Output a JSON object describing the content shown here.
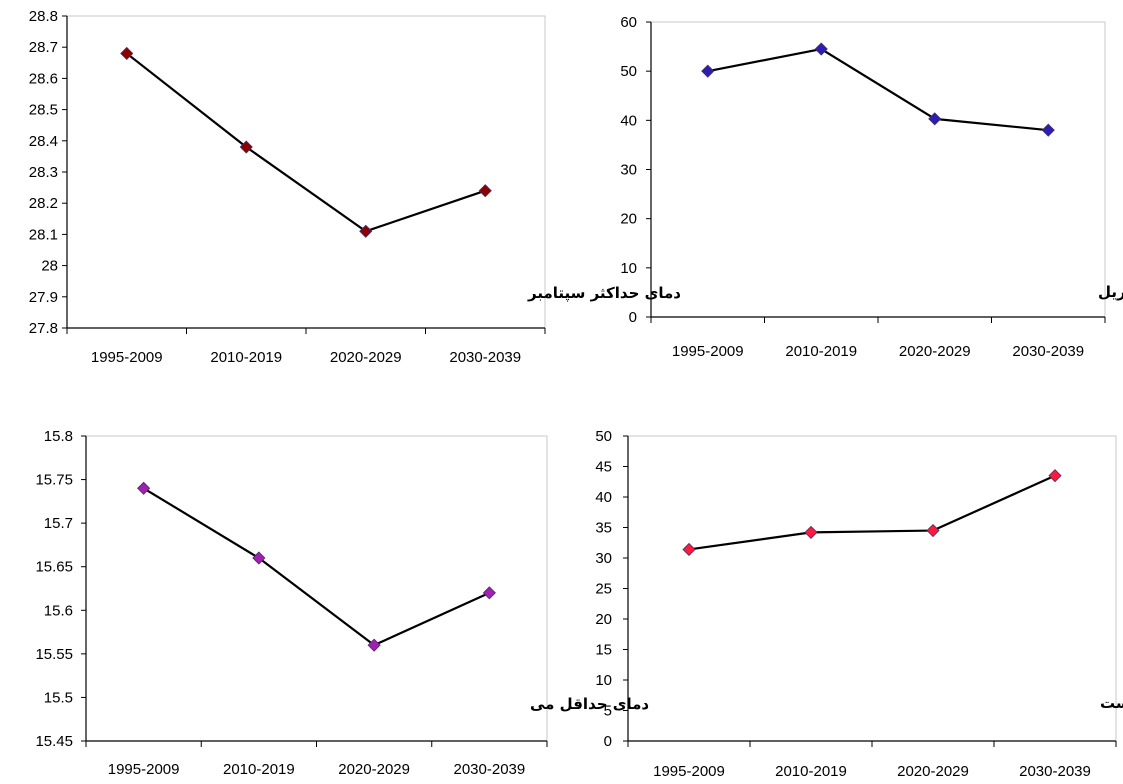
{
  "chart_data": [
    {
      "type": "line",
      "title": "دمای حداکثر سپتامبر",
      "categories": [
        "1995-2009",
        "2010-2019",
        "2020-2029",
        "2030-2039"
      ],
      "series": [
        {
          "values": [
            28.68,
            28.38,
            28.11,
            28.24
          ]
        }
      ],
      "ylim": [
        27.8,
        28.8
      ],
      "yticks": [
        "27.8",
        "27.9",
        "28",
        "28.1",
        "28.2",
        "28.3",
        "28.4",
        "28.5",
        "28.6",
        "28.7",
        "28.8"
      ],
      "marker_color": "#8b0000",
      "grid": false
    },
    {
      "type": "line",
      "title": "بارندگی آوریل",
      "categories": [
        "1995-2009",
        "2010-2019",
        "2020-2029",
        "2030-2039"
      ],
      "series": [
        {
          "values": [
            50,
            54.5,
            40.3,
            38
          ]
        }
      ],
      "ylim": [
        0,
        60
      ],
      "yticks": [
        "0",
        "10",
        "20",
        "30",
        "40",
        "50",
        "60"
      ],
      "marker_color": "#2a1fb0",
      "grid": false
    },
    {
      "type": "line",
      "title": "دمای حداقل می",
      "categories": [
        "1995-2009",
        "2010-2019",
        "2020-2029",
        "2030-2039"
      ],
      "series": [
        {
          "values": [
            15.74,
            15.66,
            15.56,
            15.62
          ]
        }
      ],
      "ylim": [
        15.45,
        15.8
      ],
      "yticks": [
        "15.45",
        "15.5",
        "15.55",
        "15.6",
        "15.65",
        "15.7",
        "15.75",
        "15.8"
      ],
      "marker_color": "#a020b0",
      "grid": false
    },
    {
      "type": "line",
      "title": "بارندگی آگوست",
      "categories": [
        "1995-2009",
        "2010-2019",
        "2020-2029",
        "2030-2039"
      ],
      "series": [
        {
          "values": [
            31.4,
            34.2,
            34.5,
            43.5
          ]
        }
      ],
      "ylim": [
        0,
        50
      ],
      "yticks": [
        "0",
        "5",
        "10",
        "15",
        "20",
        "25",
        "30",
        "35",
        "40",
        "45",
        "50"
      ],
      "marker_color": "#ff1a3c",
      "grid": false
    }
  ]
}
